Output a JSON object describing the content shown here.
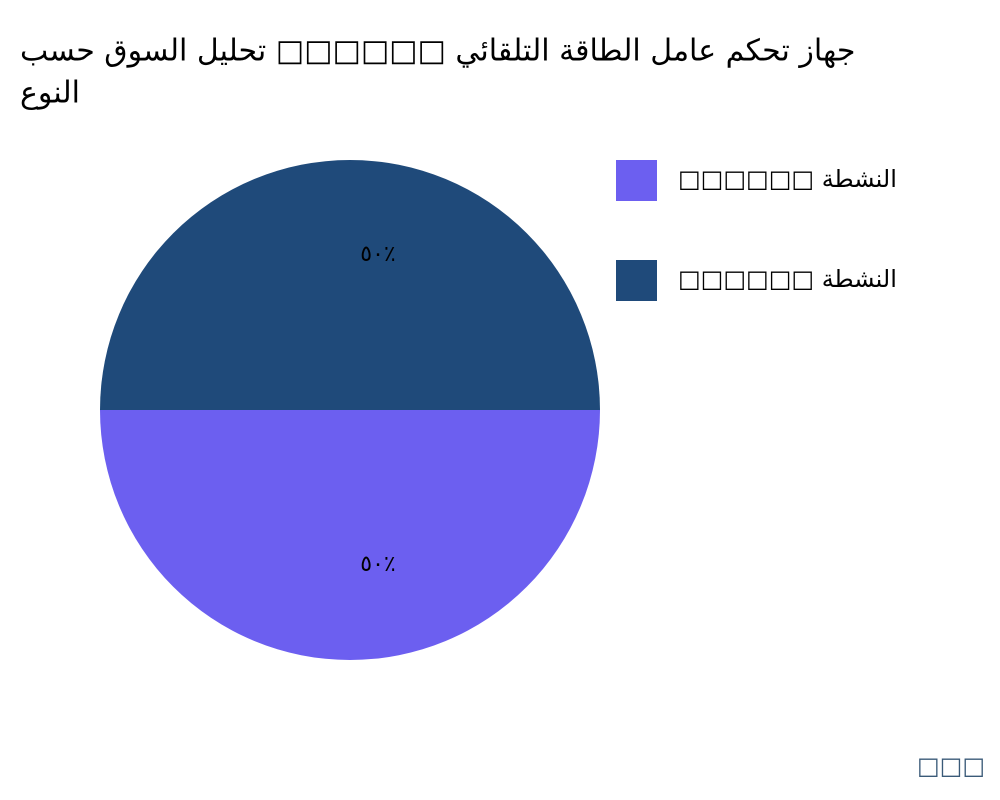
{
  "chart_data": {
    "type": "pie",
    "title_lines": [
      "جهاز تحكم عامل الطاقة التلقائي □□□□□□ تحليل السوق حسب",
      "النوع"
    ],
    "categories": [
      "□□□□□□ النشطة",
      "□□□□□□ النشطة"
    ],
    "values": [
      50,
      50
    ],
    "value_labels": [
      "٥٠٪",
      "٥٠٪"
    ],
    "colors": [
      "#6c5ff0",
      "#1f4a7a"
    ],
    "note": "□□□"
  }
}
